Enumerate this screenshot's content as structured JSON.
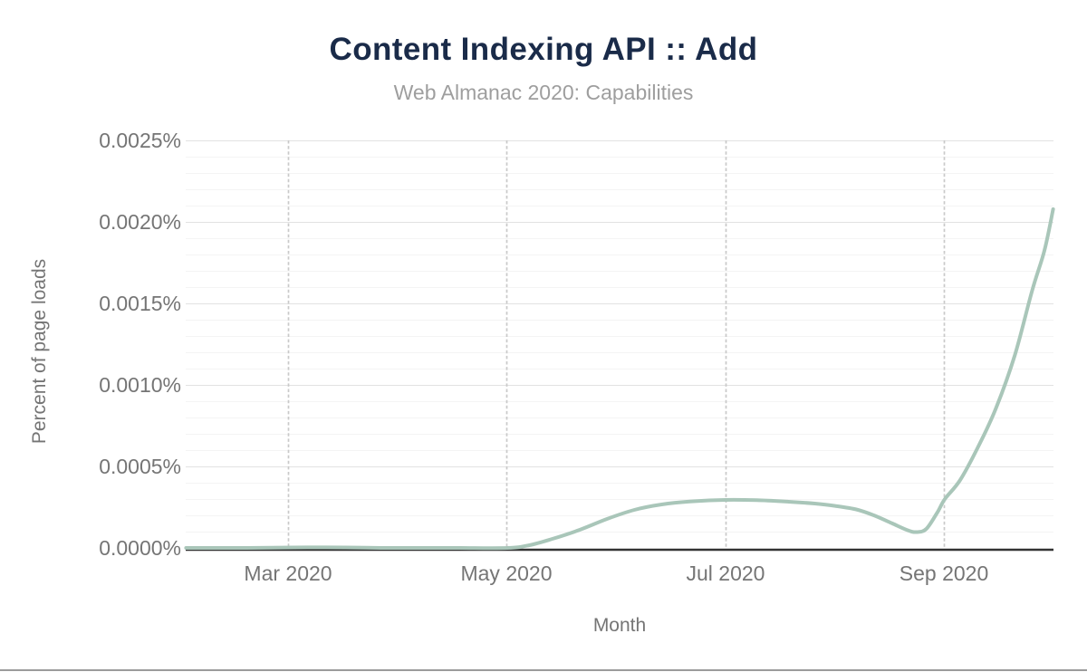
{
  "chart_data": {
    "type": "line",
    "title": "Content Indexing API :: Add",
    "subtitle": "Web Almanac 2020: Capabilities",
    "xlabel": "Month",
    "ylabel": "Percent of page loads",
    "legend": "none",
    "grid": {
      "horizontal_major": true,
      "horizontal_minor": true,
      "vertical_dashed_at_ticks": true,
      "minor_step_percent": 0.0001
    },
    "ylim_percent": [
      0,
      0.0025
    ],
    "y_ticks": [
      {
        "value": 0.0025,
        "label": "0.0025%"
      },
      {
        "value": 0.002,
        "label": "0.0020%"
      },
      {
        "value": 0.0015,
        "label": "0.0015%"
      },
      {
        "value": 0.001,
        "label": "0.0010%"
      },
      {
        "value": 0.0005,
        "label": "0.0005%"
      },
      {
        "value": 0.0,
        "label": "0.0000%"
      }
    ],
    "x_range_months": [
      "Feb 2020",
      "Oct 2020"
    ],
    "x_ticks": [
      {
        "month_index": 1,
        "label": "Mar 2020"
      },
      {
        "month_index": 3,
        "label": "May 2020"
      },
      {
        "month_index": 5,
        "label": "Jul 2020"
      },
      {
        "month_index": 7,
        "label": "Sep 2020"
      }
    ],
    "series": [
      {
        "name": "Content Indexing API :: Add",
        "smooth": true,
        "months": [
          "Feb 2020",
          "Mar 2020",
          "Apr 2020",
          "May 2020",
          "Jun 2020",
          "Jul 2020",
          "Aug 2020",
          "Sep 2020",
          "Oct 2020"
        ],
        "values_percent": [
          1e-06,
          3e-06,
          3e-06,
          0.0,
          0.00019,
          0.00029,
          0.00026,
          0.0003,
          0.00208
        ],
        "curve_trace_month_percent": [
          [
            0.07,
            0
          ],
          [
            0.44,
            0
          ],
          [
            0.85,
            1.1e-06
          ],
          [
            1.18,
            3.3e-06
          ],
          [
            1.52,
            2.8e-06
          ],
          [
            1.85,
            0
          ],
          [
            2.18,
            0
          ],
          [
            2.55,
            0
          ],
          [
            3.01,
            0
          ],
          [
            3.21,
            1.67e-05
          ],
          [
            3.42,
            5.56e-05
          ],
          [
            3.67,
            0.0001111
          ],
          [
            3.92,
            0.0001778
          ],
          [
            4.17,
            0.0002333
          ],
          [
            4.42,
            0.0002667
          ],
          [
            4.71,
            0.0002861
          ],
          [
            5.0,
            0.0002944
          ],
          [
            5.29,
            0.0002928
          ],
          [
            5.58,
            0.0002833
          ],
          [
            5.82,
            0.0002722
          ],
          [
            6.0,
            0.0002583
          ],
          [
            6.2,
            0.0002361
          ],
          [
            6.36,
            0.0002
          ],
          [
            6.53,
            0.00015
          ],
          [
            6.67,
            0.0001083
          ],
          [
            6.75,
            9.72e-05
          ],
          [
            6.84,
            0.0001167
          ],
          [
            6.94,
            0.0002167
          ],
          [
            7.01,
            0.0003
          ],
          [
            7.15,
            0.0004167
          ],
          [
            7.32,
            0.0006278
          ],
          [
            7.48,
            0.0008611
          ],
          [
            7.65,
            0.0011833
          ],
          [
            7.81,
            0.0015833
          ],
          [
            7.92,
            0.0018222
          ],
          [
            8.0,
            0.0020778
          ]
        ],
        "notes": "near zero Feb-May, rises after May to ~0.0003% plateau around Jul-Aug, dips to ~0.0001% before Sep, steep rise to ~0.00208% by mid-Oct"
      }
    ],
    "colors": {
      "title": "#1a2b49",
      "subtitle": "#9e9e9e",
      "tick_label": "#757575",
      "axis_title": "#757575",
      "line": "#a9c6b9",
      "axis_line": "#333333",
      "grid_major": "#e2e2e2",
      "grid_minor": "#f4f4f4",
      "grid_vertical_dash": "#c9c9c9",
      "bottom_border": "#9b9b9b"
    }
  }
}
